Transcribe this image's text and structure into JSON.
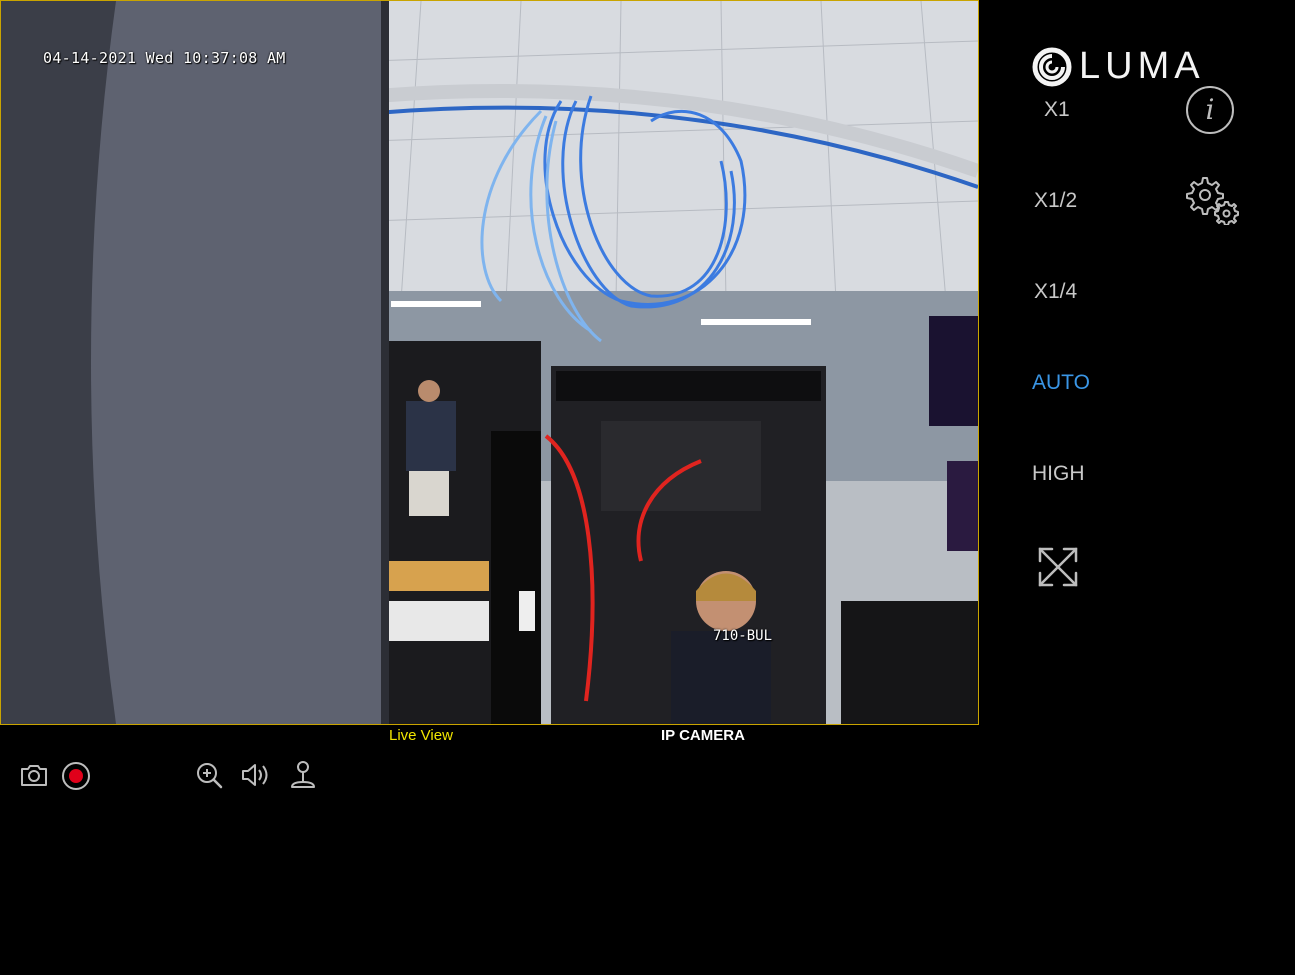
{
  "video": {
    "timestamp": "04-14-2021 Wed 10:37:08 AM",
    "camera_name": "710-BUL"
  },
  "captions": {
    "live_view": "Live View",
    "camera_type": "IP CAMERA"
  },
  "brand": {
    "logo_text": "LUMA"
  },
  "resolution_options": [
    {
      "label": "X1",
      "active": false
    },
    {
      "label": "X1/2",
      "active": false
    },
    {
      "label": "X1/4",
      "active": false
    },
    {
      "label": "AUTO",
      "active": true
    },
    {
      "label": "HIGH",
      "active": false
    }
  ],
  "side_icons": {
    "info": "i",
    "info_icon": "info-icon",
    "settings_icon": "gears-icon",
    "fullscreen_icon": "fullscreen-icon"
  },
  "toolbar": {
    "icons": [
      "camera-icon",
      "record-icon",
      "zoom-in-icon",
      "speaker-icon",
      "joystick-icon"
    ]
  },
  "colors": {
    "frame_border": "#c9a400",
    "live_view_text": "#f2e600",
    "active_option": "#3a96e6",
    "inactive_option": "#c8c8c8",
    "record_dot": "#e0001a",
    "icon_gray": "#bdbdbd"
  }
}
